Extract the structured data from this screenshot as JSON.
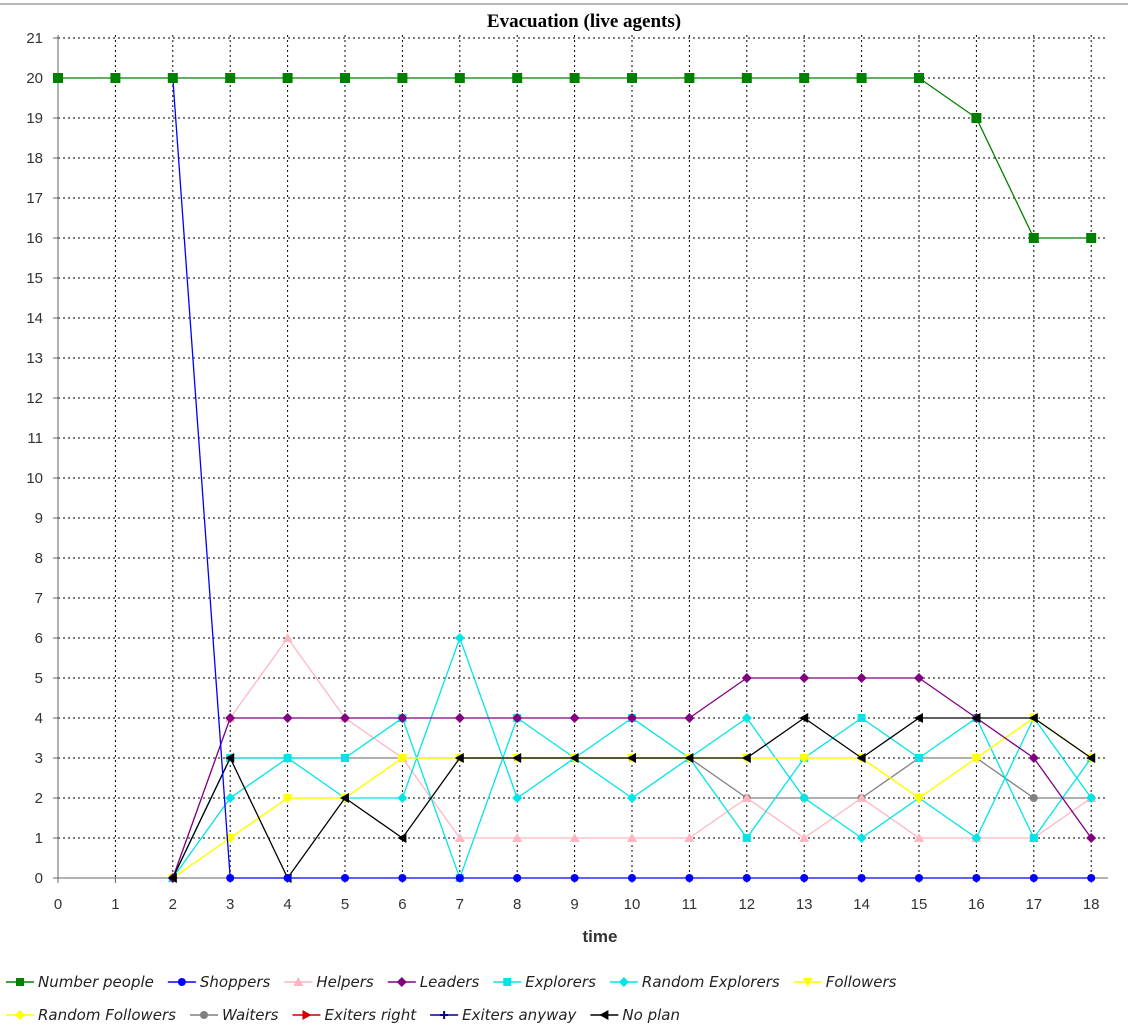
{
  "chart_data": {
    "type": "line",
    "title": "Evacuation (live agents)",
    "xlabel": "time",
    "ylabel": "",
    "x": [
      0,
      1,
      2,
      3,
      4,
      5,
      6,
      7,
      8,
      9,
      10,
      11,
      12,
      13,
      14,
      15,
      16,
      17,
      18
    ],
    "xlim": [
      0,
      18.5
    ],
    "ylim": [
      0,
      21
    ],
    "xticks": [
      "0",
      "1",
      "2",
      "3",
      "4",
      "5",
      "6",
      "7",
      "8",
      "9",
      "10",
      "11",
      "12",
      "13",
      "14",
      "15",
      "16",
      "17",
      "18"
    ],
    "yticks": [
      "0",
      "1",
      "2",
      "3",
      "4",
      "5",
      "6",
      "7",
      "8",
      "9",
      "10",
      "11",
      "12",
      "13",
      "14",
      "15",
      "16",
      "17",
      "18",
      "19",
      "20",
      "21"
    ],
    "grid": true,
    "legend_position": "bottom",
    "series": [
      {
        "name": "Number people",
        "color": "#008000",
        "marker": "square",
        "x": [
          0,
          1,
          2,
          3,
          4,
          5,
          6,
          7,
          8,
          9,
          10,
          11,
          12,
          13,
          14,
          15,
          16,
          17,
          18
        ],
        "values": [
          20,
          20,
          20,
          20,
          20,
          20,
          20,
          20,
          20,
          20,
          20,
          20,
          20,
          20,
          20,
          20,
          19,
          16,
          16
        ]
      },
      {
        "name": "Shoppers",
        "color": "#0000ff",
        "marker": "circle",
        "x": [
          2,
          3,
          4,
          5,
          6,
          7,
          8,
          9,
          10,
          11,
          12,
          13,
          14,
          15,
          16,
          17,
          18
        ],
        "values": [
          20,
          0,
          0,
          0,
          0,
          0,
          0,
          0,
          0,
          0,
          0,
          0,
          0,
          0,
          0,
          0,
          0
        ]
      },
      {
        "name": "Helpers",
        "color": "#ffb6c1",
        "marker": "triangle-up",
        "x": [
          2,
          3,
          4,
          5,
          6,
          7,
          8,
          9,
          10,
          11,
          12,
          13,
          14,
          15,
          16,
          17,
          18
        ],
        "values": [
          0,
          4,
          6,
          4,
          3,
          1,
          1,
          1,
          1,
          1,
          2,
          1,
          2,
          1,
          1,
          1,
          2
        ]
      },
      {
        "name": "Leaders",
        "color": "#800080",
        "marker": "diamond",
        "x": [
          2,
          3,
          4,
          5,
          6,
          7,
          8,
          9,
          10,
          11,
          12,
          13,
          14,
          15,
          16,
          17,
          18
        ],
        "values": [
          0,
          4,
          4,
          4,
          4,
          4,
          4,
          4,
          4,
          4,
          5,
          5,
          5,
          5,
          4,
          3,
          1
        ]
      },
      {
        "name": "Explorers",
        "color": "#00e5e5",
        "marker": "square",
        "x": [
          2,
          3,
          4,
          5,
          6,
          7,
          8,
          9,
          10,
          11,
          12,
          13,
          14,
          15,
          16,
          17,
          18
        ],
        "values": [
          0,
          3,
          3,
          3,
          4,
          0,
          4,
          3,
          4,
          3,
          1,
          3,
          4,
          3,
          4,
          1,
          3
        ]
      },
      {
        "name": "Random Explorers",
        "color": "#00e5e5",
        "marker": "diamond",
        "x": [
          2,
          3,
          4,
          5,
          6,
          7,
          8,
          9,
          10,
          11,
          12,
          13,
          14,
          15,
          16,
          17,
          18
        ],
        "values": [
          0,
          2,
          3,
          2,
          2,
          6,
          2,
          3,
          2,
          3,
          4,
          2,
          1,
          2,
          1,
          4,
          2
        ]
      },
      {
        "name": "Followers",
        "color": "#ffff00",
        "marker": "triangle-down",
        "x": [
          2,
          3,
          4,
          5,
          6,
          7,
          8,
          9,
          10,
          11,
          12,
          13,
          14,
          15,
          16,
          17,
          18
        ],
        "values": [
          0,
          1,
          2,
          2,
          3,
          3,
          3,
          3,
          3,
          3,
          3,
          3,
          3,
          2,
          3,
          4,
          3
        ]
      },
      {
        "name": "Random Followers",
        "color": "#ffff00",
        "marker": "diamond",
        "x": [
          2,
          3,
          4,
          5,
          6,
          7,
          8,
          9,
          10,
          11,
          12,
          13,
          14,
          15,
          16,
          17,
          18
        ],
        "values": [
          0,
          1,
          2,
          2,
          3,
          3,
          3,
          3,
          3,
          3,
          3,
          3,
          3,
          2,
          3,
          4,
          3
        ]
      },
      {
        "name": "Waiters",
        "color": "#808080",
        "marker": "circle",
        "x": [
          2,
          3,
          4,
          5,
          6,
          7,
          8,
          9,
          10,
          11,
          12,
          13,
          14,
          15,
          16,
          17,
          18
        ],
        "values": [
          0,
          3,
          3,
          3,
          3,
          3,
          3,
          3,
          3,
          3,
          2,
          2,
          2,
          3,
          3,
          2,
          2
        ]
      },
      {
        "name": "Exiters right",
        "color": "#cc0000",
        "marker": "triangle-right",
        "x": [],
        "values": []
      },
      {
        "name": "Exiters anyway",
        "color": "#00008b",
        "marker": "plus",
        "x": [],
        "values": []
      },
      {
        "name": "No plan",
        "color": "#000000",
        "marker": "triangle-left",
        "x": [
          2,
          3,
          4,
          5,
          6,
          7,
          8,
          9,
          10,
          11,
          12,
          13,
          14,
          15,
          16,
          17,
          18
        ],
        "values": [
          0,
          3,
          0,
          2,
          1,
          3,
          3,
          3,
          3,
          3,
          3,
          4,
          3,
          4,
          4,
          4,
          3
        ]
      }
    ]
  }
}
